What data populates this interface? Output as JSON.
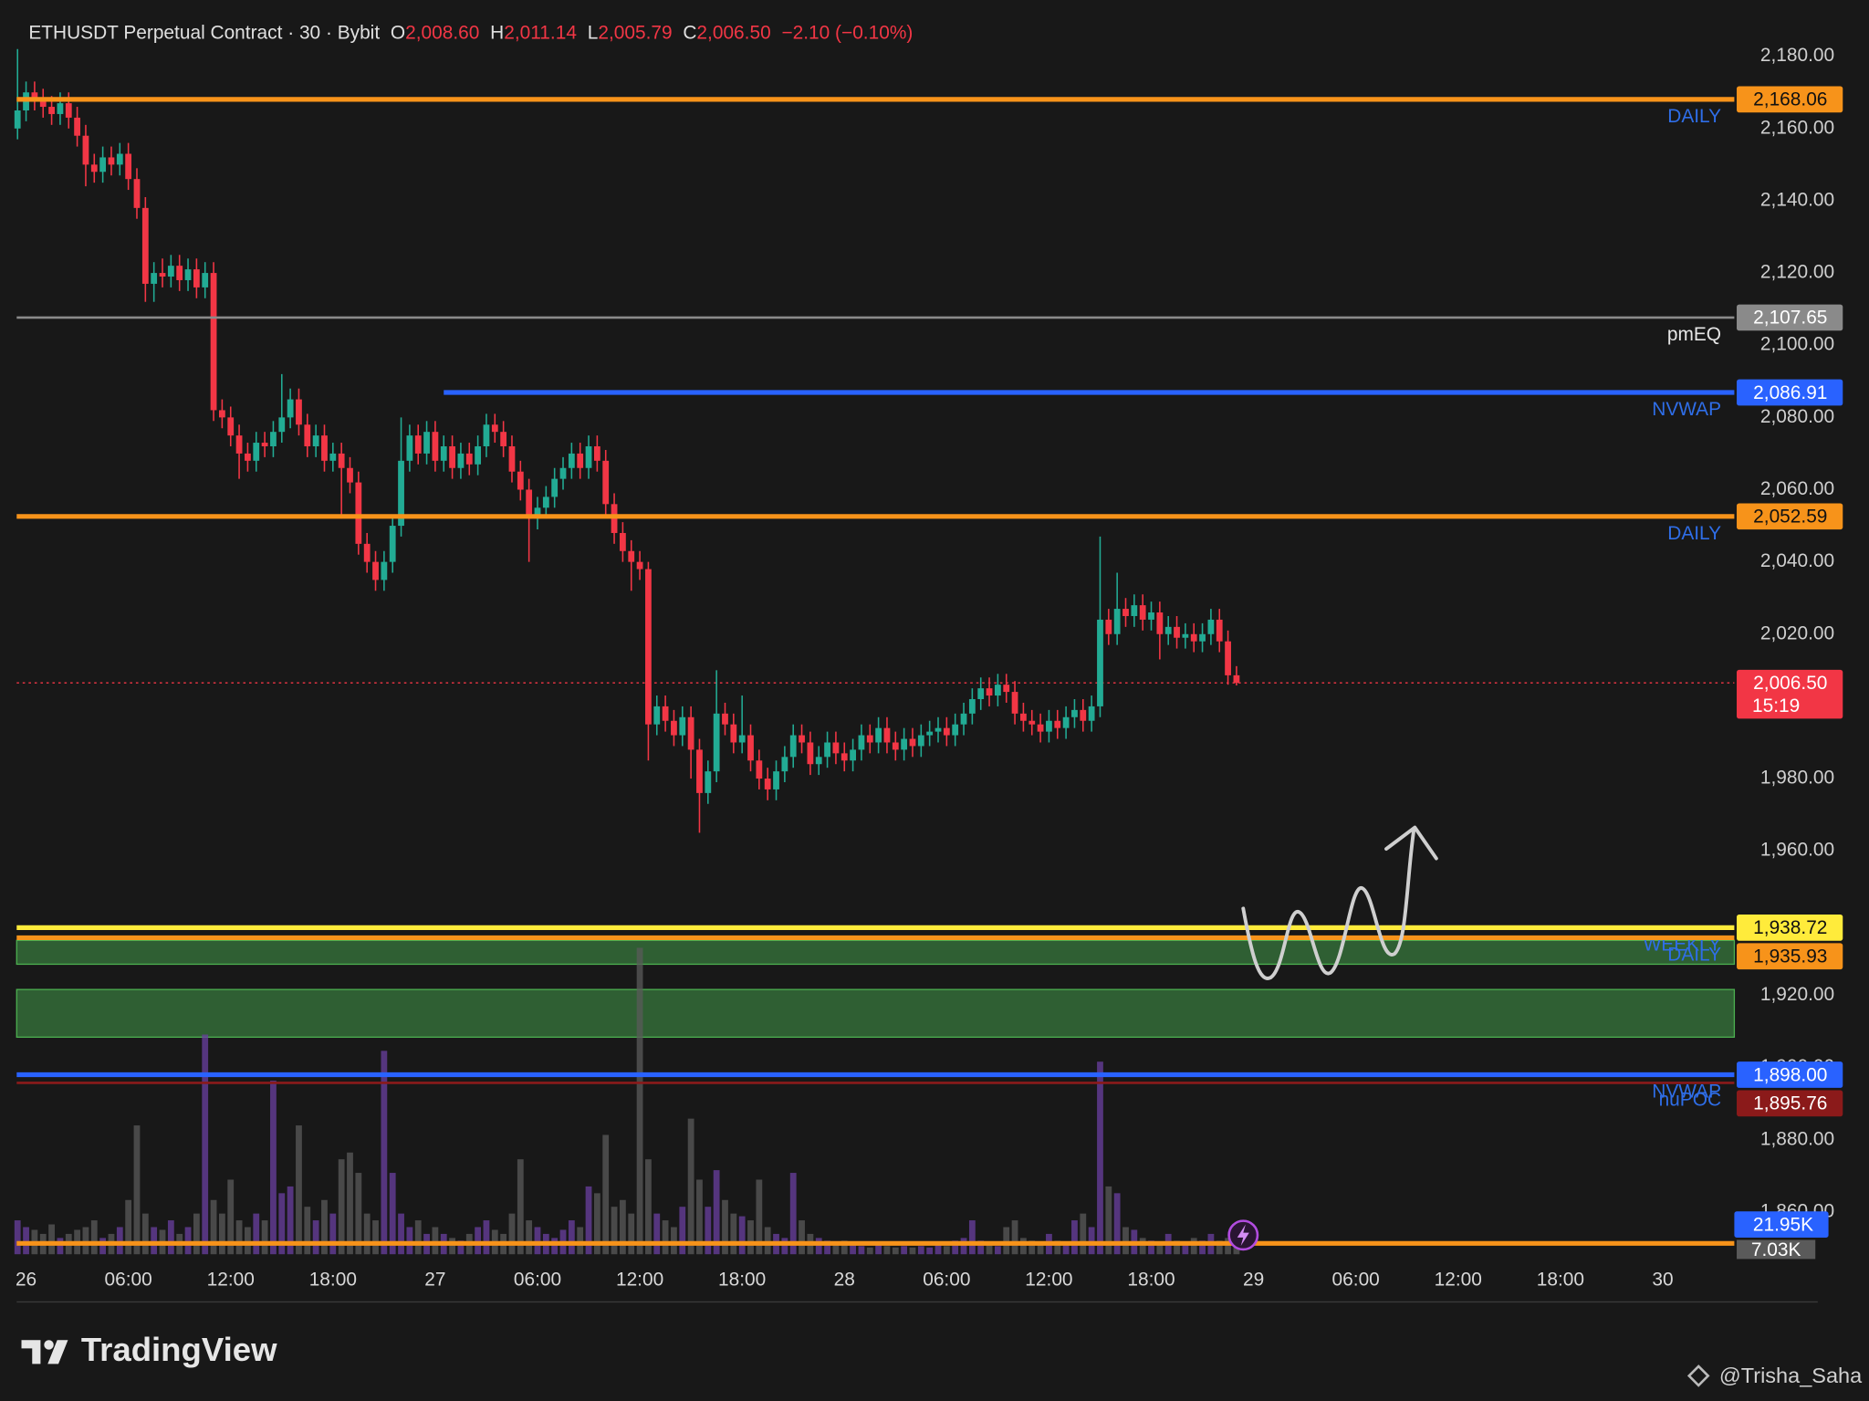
{
  "chart_data": {
    "type": "candlestick",
    "title": "ETHUSDT Perpetual Contract · 30 · Bybit",
    "ohlc": [
      {
        "key": "O",
        "value": "2,008.60"
      },
      {
        "key": "H",
        "value": "2,011.14"
      },
      {
        "key": "L",
        "value": "2,005.79"
      },
      {
        "key": "C",
        "value": "2,006.50"
      }
    ],
    "change": "−2.10 (−0.10%)",
    "up_color": "#22ab94",
    "down_color": "#f23645",
    "volume_up_color": "#6a3fa0",
    "volume_down_color": "#5a5a5a",
    "xlim": [
      -1.1,
      200.4
    ],
    "ylim": [
      1848.3,
      2192.9
    ],
    "volume_lim": [
      0,
      240
    ],
    "grid": false,
    "xticks": [
      {
        "value": 0,
        "label": "26"
      },
      {
        "value": 12,
        "label": "06:00"
      },
      {
        "value": 24,
        "label": "12:00"
      },
      {
        "value": 36,
        "label": "18:00"
      },
      {
        "value": 48,
        "label": "27"
      },
      {
        "value": 60,
        "label": "06:00"
      },
      {
        "value": 72,
        "label": "12:00"
      },
      {
        "value": 84,
        "label": "18:00"
      },
      {
        "value": 96,
        "label": "28"
      },
      {
        "value": 108,
        "label": "06:00"
      },
      {
        "value": 120,
        "label": "12:00"
      },
      {
        "value": 132,
        "label": "18:00"
      },
      {
        "value": 144,
        "label": "29"
      },
      {
        "value": 156,
        "label": "06:00"
      },
      {
        "value": 168,
        "label": "12:00"
      },
      {
        "value": 180,
        "label": "18:00"
      },
      {
        "value": 192,
        "label": "30"
      }
    ],
    "yticks": [
      {
        "value": 1860,
        "label": "1,860.00"
      },
      {
        "value": 1880,
        "label": "1,880.00"
      },
      {
        "value": 1900,
        "label": "1,900.00"
      },
      {
        "value": 1920,
        "label": "1,920.00"
      },
      {
        "value": 1940,
        "label": "1,940.00"
      },
      {
        "value": 1960,
        "label": "1,960.00"
      },
      {
        "value": 1980,
        "label": "1,980.00"
      },
      {
        "value": 2000,
        "label": "2,000.00"
      },
      {
        "value": 2020,
        "label": "2,020.00"
      },
      {
        "value": 2040,
        "label": "2,040.00"
      },
      {
        "value": 2060,
        "label": "2,060.00"
      },
      {
        "value": 2080,
        "label": "2,080.00"
      },
      {
        "value": 2100,
        "label": "2,100.00"
      },
      {
        "value": 2120,
        "label": "2,120.00"
      },
      {
        "value": 2140,
        "label": "2,140.00"
      },
      {
        "value": 2160,
        "label": "2,160.00"
      },
      {
        "value": 2180,
        "label": "2,180.00"
      }
    ],
    "x": [
      -1,
      0,
      1,
      2,
      3,
      4,
      5,
      6,
      7,
      8,
      9,
      10,
      11,
      12,
      13,
      14,
      15,
      16,
      17,
      18,
      19,
      20,
      21,
      22,
      23,
      24,
      25,
      26,
      27,
      28,
      29,
      30,
      31,
      32,
      33,
      34,
      35,
      36,
      37,
      38,
      39,
      40,
      41,
      42,
      43,
      44,
      45,
      46,
      47,
      48,
      49,
      50,
      51,
      52,
      53,
      54,
      55,
      56,
      57,
      58,
      59,
      60,
      61,
      62,
      63,
      64,
      65,
      66,
      67,
      68,
      69,
      70,
      71,
      72,
      73,
      74,
      75,
      76,
      77,
      78,
      79,
      80,
      81,
      82,
      83,
      84,
      85,
      86,
      87,
      88,
      89,
      90,
      91,
      92,
      93,
      94,
      95,
      96,
      97,
      98,
      99,
      100,
      101,
      102,
      103,
      104,
      105,
      106,
      107,
      108,
      109,
      110,
      111,
      112,
      113,
      114,
      115,
      116,
      117,
      118,
      119,
      120,
      121,
      122,
      123,
      124,
      125,
      126,
      127,
      128,
      129,
      130,
      131,
      132,
      133,
      134,
      135,
      136,
      137,
      138,
      139,
      140,
      141,
      142
    ],
    "open": [
      2160,
      2165,
      2170,
      2168,
      2166,
      2164,
      2167,
      2163,
      2158,
      2150,
      2148,
      2152,
      2150,
      2153,
      2146,
      2138,
      2117,
      2120,
      2119,
      2122,
      2118,
      2121,
      2116,
      2120,
      2082,
      2080,
      2075,
      2070,
      2068,
      2073,
      2072,
      2076,
      2080,
      2085,
      2078,
      2072,
      2075,
      2068,
      2070,
      2066,
      2062,
      2045,
      2040,
      2035,
      2040,
      2050,
      2068,
      2075,
      2070,
      2076,
      2068,
      2072,
      2066,
      2070,
      2067,
      2072,
      2078,
      2076,
      2072,
      2065,
      2060,
      2052,
      2055,
      2058,
      2063,
      2066,
      2070,
      2066,
      2072,
      2068,
      2056,
      2048,
      2043,
      2040,
      2038,
      1995,
      2000,
      1996,
      1992,
      1997,
      1988,
      1976,
      1982,
      1998,
      1995,
      1990,
      1992,
      1985,
      1980,
      1977,
      1982,
      1986,
      1992,
      1990,
      1984,
      1986,
      1990,
      1987,
      1985,
      1988,
      1992,
      1990,
      1994,
      1990,
      1988,
      1991,
      1989,
      1992,
      1993,
      1994,
      1992,
      1995,
      1998,
      2002,
      2005,
      2003,
      2006,
      2004,
      1998,
      1996,
      1995,
      1993,
      1996,
      1994,
      1997,
      1999,
      1996,
      2000,
      2024,
      2020,
      2027,
      2025,
      2028,
      2024,
      2026,
      2020,
      2022,
      2019,
      2020,
      2018,
      2020,
      2024,
      2018,
      2008.6
    ],
    "high": [
      2182,
      2173,
      2173,
      2171,
      2169,
      2170,
      2170,
      2166,
      2161,
      2153,
      2155,
      2155,
      2156,
      2156,
      2149,
      2141,
      2123,
      2124,
      2125,
      2125,
      2124,
      2124,
      2123,
      2123,
      2085,
      2083,
      2078,
      2073,
      2076,
      2076,
      2079,
      2092,
      2088,
      2088,
      2081,
      2078,
      2078,
      2073,
      2073,
      2069,
      2065,
      2048,
      2043,
      2043,
      2053,
      2080,
      2078,
      2078,
      2079,
      2079,
      2075,
      2075,
      2073,
      2073,
      2075,
      2081,
      2081,
      2079,
      2075,
      2068,
      2063,
      2058,
      2061,
      2066,
      2069,
      2073,
      2073,
      2075,
      2075,
      2071,
      2059,
      2051,
      2046,
      2043,
      2040,
      2003,
      2003,
      1999,
      2000,
      2000,
      1991,
      1985,
      2010,
      2001,
      1998,
      2003,
      1995,
      1988,
      1983,
      1985,
      1989,
      1995,
      1995,
      1993,
      1989,
      1993,
      1993,
      1990,
      1991,
      1995,
      1995,
      1997,
      1997,
      1993,
      1994,
      1994,
      1995,
      1996,
      1997,
      1997,
      1998,
      2001,
      2005,
      2008,
      2008,
      2009,
      2009,
      2007,
      2001,
      1999,
      1998,
      1999,
      1999,
      2000,
      2002,
      2002,
      2003,
      2047,
      2027,
      2037,
      2030,
      2031,
      2031,
      2029,
      2029,
      2025,
      2025,
      2023,
      2023,
      2023,
      2027,
      2027,
      2021,
      2011.14
    ],
    "low": [
      2157,
      2162,
      2165,
      2163,
      2161,
      2161,
      2160,
      2155,
      2144,
      2145,
      2145,
      2147,
      2147,
      2143,
      2135,
      2112,
      2112,
      2116,
      2116,
      2115,
      2115,
      2113,
      2113,
      2079,
      2077,
      2072,
      2063,
      2065,
      2065,
      2069,
      2069,
      2073,
      2077,
      2075,
      2069,
      2069,
      2065,
      2065,
      2052,
      2059,
      2042,
      2037,
      2032,
      2032,
      2037,
      2047,
      2065,
      2067,
      2067,
      2065,
      2065,
      2063,
      2063,
      2064,
      2064,
      2069,
      2073,
      2069,
      2062,
      2057,
      2040,
      2049,
      2052,
      2055,
      2060,
      2063,
      2063,
      2063,
      2065,
      2053,
      2045,
      2040,
      2032,
      2035,
      1985,
      1992,
      1993,
      1989,
      1989,
      1980,
      1965,
      1973,
      1979,
      1992,
      1987,
      1987,
      1982,
      1977,
      1974,
      1974,
      1979,
      1983,
      1987,
      1981,
      1981,
      1983,
      1984,
      1982,
      1982,
      1985,
      1987,
      1987,
      1987,
      1985,
      1985,
      1986,
      1986,
      1989,
      1990,
      1989,
      1989,
      1992,
      1995,
      1999,
      2000,
      2000,
      2001,
      1995,
      1993,
      1992,
      1990,
      1990,
      1991,
      1991,
      1994,
      1993,
      1993,
      1997,
      2017,
      2017,
      2022,
      2022,
      2021,
      2021,
      2013,
      2017,
      2016,
      2016,
      2015,
      2015,
      2017,
      2015,
      2006,
      2005.79
    ],
    "close": [
      2165,
      2170,
      2168,
      2166,
      2164,
      2167,
      2163,
      2158,
      2150,
      2148,
      2152,
      2150,
      2153,
      2146,
      2138,
      2117,
      2120,
      2119,
      2122,
      2118,
      2121,
      2116,
      2120,
      2082,
      2080,
      2075,
      2070,
      2068,
      2073,
      2072,
      2076,
      2080,
      2085,
      2078,
      2072,
      2075,
      2068,
      2070,
      2066,
      2062,
      2045,
      2040,
      2035,
      2040,
      2050,
      2068,
      2075,
      2070,
      2076,
      2068,
      2072,
      2066,
      2070,
      2067,
      2072,
      2078,
      2076,
      2072,
      2065,
      2060,
      2052,
      2055,
      2058,
      2063,
      2066,
      2070,
      2066,
      2072,
      2068,
      2056,
      2048,
      2043,
      2040,
      2038,
      1995,
      2000,
      1996,
      1992,
      1997,
      1988,
      1976,
      1982,
      1998,
      1995,
      1990,
      1992,
      1985,
      1980,
      1977,
      1982,
      1986,
      1992,
      1990,
      1984,
      1986,
      1990,
      1987,
      1985,
      1988,
      1992,
      1990,
      1994,
      1990,
      1988,
      1991,
      1989,
      1992,
      1993,
      1994,
      1992,
      1995,
      1998,
      2002,
      2005,
      2003,
      2006,
      2004,
      1998,
      1996,
      1995,
      1993,
      1996,
      1994,
      1997,
      1999,
      1996,
      2000,
      2024,
      2020,
      2027,
      2025,
      2028,
      2024,
      2026,
      2020,
      2022,
      2019,
      2020,
      2018,
      2020,
      2024,
      2018,
      2008.6,
      2006.5
    ],
    "volume": [
      25,
      20,
      18,
      15,
      22,
      12,
      15,
      18,
      20,
      25,
      12,
      15,
      20,
      40,
      95,
      30,
      20,
      18,
      25,
      15,
      20,
      30,
      162,
      40,
      30,
      55,
      25,
      20,
      30,
      25,
      128,
      45,
      50,
      95,
      35,
      25,
      40,
      30,
      70,
      75,
      60,
      30,
      25,
      150,
      60,
      30,
      20,
      25,
      15,
      20,
      15,
      12,
      10,
      15,
      20,
      25,
      18,
      15,
      30,
      70,
      25,
      20,
      15,
      12,
      18,
      25,
      20,
      50,
      45,
      88,
      35,
      40,
      30,
      226,
      70,
      30,
      25,
      20,
      35,
      100,
      55,
      35,
      62,
      40,
      30,
      28,
      25,
      55,
      20,
      15,
      12,
      60,
      25,
      15,
      12,
      10,
      8,
      10,
      8,
      6,
      5,
      8,
      6,
      5,
      6,
      5,
      6,
      5,
      8,
      6,
      10,
      12,
      25,
      10,
      8,
      6,
      20,
      25,
      12,
      10,
      8,
      15,
      10,
      8,
      25,
      30,
      20,
      142,
      50,
      45,
      20,
      18,
      12,
      10,
      8,
      15,
      10,
      8,
      12,
      10,
      15,
      10,
      12,
      7.03
    ],
    "volume_ma": {
      "value": 21.95,
      "label": "21.95K",
      "color": "#2962ff"
    },
    "volume_last_label": "7.03K",
    "zones": [
      {
        "from": 1928.6,
        "to": 1935.2,
        "color": "#2f5f33"
      },
      {
        "from": 1908.4,
        "to": 1921.6,
        "color": "#2f5f33"
      }
    ],
    "levels": [
      {
        "value": 2168.06,
        "label": "2,168.06",
        "name": "DAILY",
        "color": "#f7931a",
        "name_color": "#2f6ee8",
        "tag_text": "#111111",
        "width": 4
      },
      {
        "value": 2107.65,
        "label": "2,107.65",
        "name": "pmEQ",
        "color": "#8a8a8a",
        "name_color": "#e6e6e6",
        "tag_text": "#ffffff",
        "width": 2
      },
      {
        "value": 2086.91,
        "label": "2,086.91",
        "name": "NVWAP",
        "color": "#2962ff",
        "name_color": "#2f6ee8",
        "tag_text": "#ffffff",
        "width": 4,
        "start_x": 49
      },
      {
        "value": 2052.59,
        "label": "2,052.59",
        "name": "DAILY",
        "color": "#f7931a",
        "name_color": "#2f6ee8",
        "tag_text": "#111111",
        "width": 4
      },
      {
        "value": 1938.72,
        "label": "1,938.72",
        "name": "WEEKLY",
        "color": "#ffeb3b",
        "name_color": "#2f6ee8",
        "tag_text": "#111111",
        "width": 4
      },
      {
        "value": 1935.93,
        "label": "1,935.93",
        "name": "DAILY",
        "color": "#f7931a",
        "name_color": "#2f6ee8",
        "tag_text": "#111111",
        "width": 4
      },
      {
        "value": 1898.0,
        "label": "1,898.00",
        "name": "NVWAP",
        "color": "#2962ff",
        "name_color": "#2f6ee8",
        "tag_text": "#ffffff",
        "width": 4
      },
      {
        "value": 1895.76,
        "label": "1,895.76",
        "name": "nuPOC",
        "color": "#8b1a1a",
        "name_color": "#2f6ee8",
        "tag_text": "#ffffff",
        "width": 2
      },
      {
        "value": 1851.3,
        "color": "#f7931a",
        "width": 4
      }
    ],
    "last": {
      "value": 2006.5,
      "label": "2,006.50",
      "countdown": "15:19",
      "color": "#f23645"
    }
  },
  "footer": {
    "brand": "TradingView",
    "watermark": "@Trisha_Saha"
  }
}
